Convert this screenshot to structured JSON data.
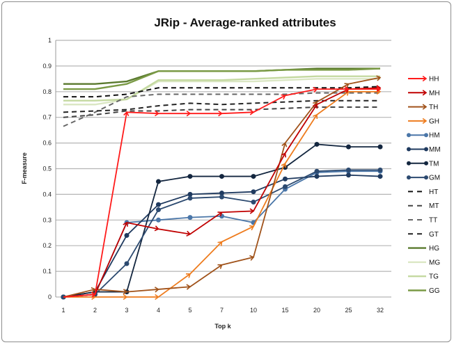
{
  "chart_data": {
    "type": "line",
    "title": "JRip - Average-ranked attributes",
    "xlabel": "Top k",
    "ylabel": "F-measure",
    "ylim": [
      0,
      1
    ],
    "yticks": [
      "0",
      "0.1",
      "0.2",
      "0.3",
      "0.4",
      "0.5",
      "0.6",
      "0.7",
      "0.8",
      "0.9",
      "1"
    ],
    "categories": [
      "1",
      "2",
      "3",
      "4",
      "5",
      "7",
      "10",
      "15",
      "20",
      "25",
      "32"
    ],
    "grid": "horizontal",
    "legend_position": "right",
    "series": [
      {
        "name": "HH",
        "color": "#ff1a1a",
        "style": "arrow",
        "values": [
          0,
          0.01,
          0.72,
          0.715,
          0.715,
          0.715,
          0.72,
          0.785,
          0.81,
          0.81,
          0.81
        ]
      },
      {
        "name": "MH",
        "color": "#c00000",
        "style": "arrow",
        "values": [
          0,
          0.01,
          0.29,
          0.265,
          0.245,
          0.33,
          0.335,
          0.56,
          0.75,
          0.81,
          0.815
        ]
      },
      {
        "name": "TH",
        "color": "#a0521a",
        "style": "arrow",
        "values": [
          0,
          0.03,
          0.02,
          0.03,
          0.04,
          0.125,
          0.155,
          0.6,
          0.76,
          0.83,
          0.855
        ]
      },
      {
        "name": "GH",
        "color": "#ee7c1e",
        "style": "arrow",
        "values": [
          0,
          0,
          0,
          0,
          0.09,
          0.215,
          0.275,
          0.52,
          0.71,
          0.8,
          0.8
        ]
      },
      {
        "name": "HM",
        "color": "#4a76a8",
        "style": "dot",
        "values": [
          0,
          0.01,
          0.29,
          0.3,
          0.31,
          0.315,
          0.29,
          0.42,
          0.485,
          0.49,
          0.49
        ]
      },
      {
        "name": "MM",
        "color": "#1f3a5f",
        "style": "dot",
        "values": [
          0,
          0.02,
          0.24,
          0.36,
          0.4,
          0.405,
          0.41,
          0.46,
          0.47,
          0.475,
          0.47
        ]
      },
      {
        "name": "TM",
        "color": "#13263f",
        "style": "dot",
        "values": [
          0,
          0.02,
          0.02,
          0.45,
          0.47,
          0.47,
          0.47,
          0.505,
          0.595,
          0.585,
          0.585
        ]
      },
      {
        "name": "GM",
        "color": "#2c4a70",
        "style": "dot",
        "values": [
          0,
          0.01,
          0.13,
          0.34,
          0.385,
          0.39,
          0.37,
          0.43,
          0.49,
          0.495,
          0.495
        ]
      },
      {
        "name": "HT",
        "color": "#111111",
        "style": "dash",
        "values": [
          0.78,
          0.78,
          0.79,
          0.815,
          0.815,
          0.815,
          0.815,
          0.815,
          0.815,
          0.815,
          0.82
        ]
      },
      {
        "name": "MT",
        "color": "#444444",
        "style": "dash",
        "values": [
          0.7,
          0.71,
          0.725,
          0.725,
          0.73,
          0.73,
          0.73,
          0.735,
          0.74,
          0.74,
          0.74
        ]
      },
      {
        "name": "TT",
        "color": "#666666",
        "style": "dash",
        "values": [
          0.665,
          0.72,
          0.78,
          0.79,
          0.79,
          0.79,
          0.79,
          0.79,
          0.795,
          0.795,
          0.795
        ]
      },
      {
        "name": "GT",
        "color": "#222222",
        "style": "dash",
        "values": [
          0.72,
          0.725,
          0.73,
          0.745,
          0.755,
          0.75,
          0.755,
          0.76,
          0.765,
          0.765,
          0.765
        ]
      },
      {
        "name": "HG",
        "color": "#5a7a2e",
        "style": "solid",
        "values": [
          0.83,
          0.83,
          0.84,
          0.88,
          0.88,
          0.88,
          0.88,
          0.885,
          0.89,
          0.89,
          0.89
        ]
      },
      {
        "name": "MG",
        "color": "#dbe7c4",
        "style": "solid",
        "values": [
          0.75,
          0.75,
          0.77,
          0.84,
          0.84,
          0.84,
          0.84,
          0.845,
          0.85,
          0.85,
          0.85
        ]
      },
      {
        "name": "TG",
        "color": "#c4d9a0",
        "style": "solid",
        "values": [
          0.765,
          0.765,
          0.77,
          0.845,
          0.845,
          0.845,
          0.85,
          0.855,
          0.86,
          0.86,
          0.86
        ]
      },
      {
        "name": "GG",
        "color": "#7a9a45",
        "style": "solid",
        "values": [
          0.81,
          0.81,
          0.83,
          0.88,
          0.88,
          0.88,
          0.88,
          0.885,
          0.885,
          0.885,
          0.89
        ]
      }
    ]
  }
}
